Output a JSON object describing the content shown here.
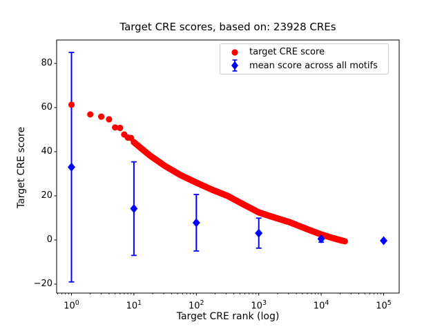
{
  "figure": {
    "title": "Target CRE scores, based on: 23928 CREs",
    "xlabel": "Target CRE rank (log)",
    "ylabel": "Target CRE score"
  },
  "legend": {
    "position": "upper right",
    "items": [
      {
        "label": "target CRE score",
        "marker": "red-circle"
      },
      {
        "label": "mean score across all motifs",
        "marker": "blue-diamond-errorbar"
      }
    ]
  },
  "chart_data": {
    "type": "scatter",
    "title": "Target CRE scores, based on: 23928 CREs",
    "xlabel": "Target CRE rank (log)",
    "ylabel": "Target CRE score",
    "x_scale": "log",
    "xlim_log10": [
      -0.25,
      5.25
    ],
    "ylim": [
      -24.1,
      90.6
    ],
    "x_tick_exponents": [
      0,
      1,
      2,
      3,
      4,
      5
    ],
    "y_ticks": [
      -20,
      0,
      20,
      40,
      60,
      80
    ],
    "grid": false,
    "colors": {
      "target": "#ff0000",
      "mean": "#0000ff"
    },
    "series": [
      {
        "name": "target CRE score",
        "type": "scatter",
        "marker": "circle",
        "color": "#ff0000",
        "n_points_total": 23928,
        "discrete_points_rank_score": [
          [
            1,
            61.3
          ],
          [
            2,
            56.9
          ],
          [
            3,
            55.9
          ],
          [
            4,
            54.7
          ],
          [
            5,
            51.0
          ],
          [
            6,
            50.8
          ],
          [
            7,
            47.8
          ],
          [
            8,
            46.4
          ],
          [
            9,
            46.2
          ]
        ],
        "curve_anchors_rank_score": [
          [
            10,
            44.3
          ],
          [
            18,
            38.3
          ],
          [
            32,
            33.4
          ],
          [
            56,
            29.4
          ],
          [
            100,
            26.0
          ],
          [
            178,
            22.8
          ],
          [
            316,
            20.0
          ],
          [
            562,
            16.2
          ],
          [
            1000,
            12.5
          ],
          [
            1778,
            10.2
          ],
          [
            3162,
            8.0
          ],
          [
            5623,
            5.2
          ],
          [
            10000,
            2.5
          ],
          [
            14000,
            1.2
          ],
          [
            20000,
            0.0
          ],
          [
            23928,
            -0.6
          ]
        ]
      },
      {
        "name": "mean score across all motifs",
        "type": "errorbar",
        "marker": "diamond",
        "color": "#0000ff",
        "points": [
          {
            "x": 1,
            "mean": 33.0,
            "err": 52.0
          },
          {
            "x": 10,
            "mean": 14.2,
            "err": 21.2
          },
          {
            "x": 100,
            "mean": 7.8,
            "err": 12.8
          },
          {
            "x": 1000,
            "mean": 3.1,
            "err": 6.8
          },
          {
            "x": 10000,
            "mean": 0.5,
            "err": 1.5
          },
          {
            "x": 100000,
            "mean": -0.3,
            "err": 0.3
          }
        ]
      }
    ]
  }
}
